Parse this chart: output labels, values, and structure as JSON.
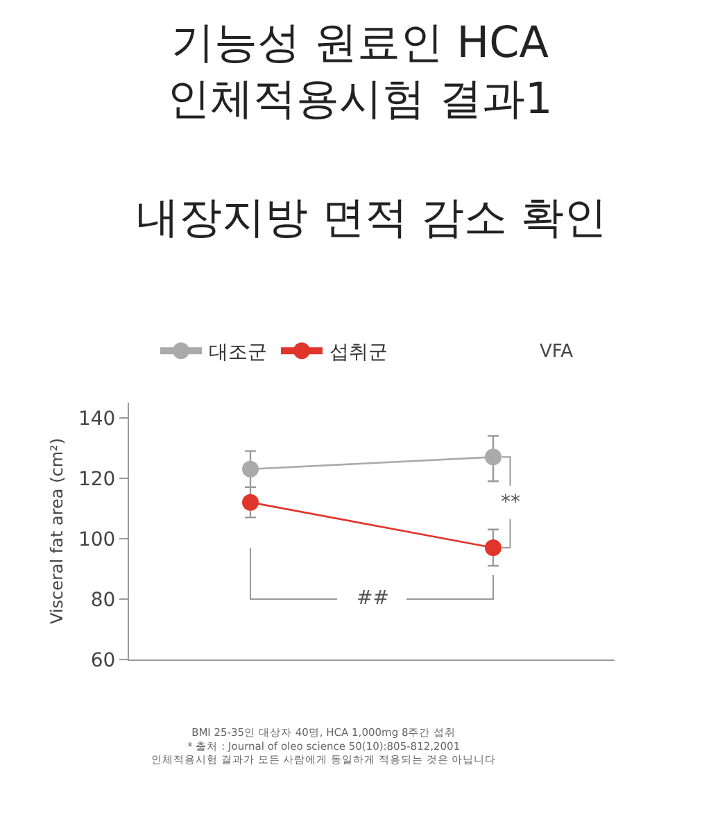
{
  "chart_data": {
    "type": "line",
    "title": "기능성 원료인 HCA\n인체적용시험 결과1",
    "subtitle": "내장지방 면적 감소 확인",
    "ylabel": "Visceral fat area (cm²)",
    "categories": [
      null,
      null
    ],
    "series": [
      {
        "name": "대조군",
        "color": "#aaaaaa",
        "values": [
          123,
          127
        ],
        "errors": [
          [
            117,
            129
          ],
          [
            119,
            134
          ]
        ]
      },
      {
        "name": "섭취군",
        "color": "#e0352b",
        "values": [
          112,
          97
        ],
        "errors": [
          [
            107,
            117
          ],
          [
            91,
            103
          ]
        ]
      }
    ],
    "ylim": [
      60,
      145
    ],
    "yticks": [
      60,
      80,
      100,
      120,
      140
    ],
    "grid": false,
    "legend": "top left",
    "marker": "circle",
    "line_style": "solid",
    "annotations": [
      "VFA",
      "**",
      "##",
      "BMI 25-35인 대상자 40명, HCA 1,000mg 8주간 섭취\n* 출처 : Journal of oleo science 50(10):805-812,2001\n인체적용시험 결과가 모든 사람에게 동일하게 적용되는 것은 아닙니다"
    ]
  }
}
